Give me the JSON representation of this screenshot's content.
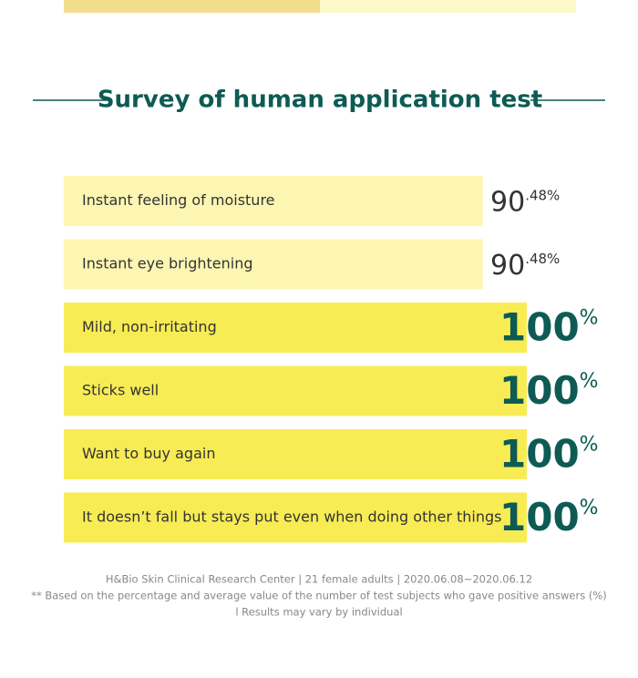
{
  "chart_data": {
    "type": "hbar",
    "title": "Survey of human application test",
    "categories": [
      "Instant feeling of moisture",
      "Instant eye brightening",
      "Mild, non-irritating",
      "Sticks well",
      "Want to buy again",
      "It doesn’t fall but stays put even when doing other things"
    ],
    "values": [
      90.48,
      90.48,
      100,
      100,
      100,
      100
    ],
    "value_labels": [
      "90.48%",
      "90.48%",
      "100%",
      "100%",
      "100%",
      "100%"
    ],
    "colors": [
      "#fdf6b3",
      "#fdf6b3",
      "#f8ec55",
      "#f8ec55",
      "#f8ec55",
      "#f8ec55"
    ],
    "label_colors": [
      "#333333",
      "#333333",
      "#0d5b54",
      "#0d5b54",
      "#0d5b54",
      "#0d5b54"
    ],
    "xlim": [
      0,
      100
    ],
    "footnotes": [
      "H&Bio Skin Clinical Research Center | 21 female adults | 2020.06.08~2020.06.12",
      "** Based on the percentage and average value of the number of test subjects who gave positive answers (%)",
      "l Results may vary by individual"
    ]
  }
}
